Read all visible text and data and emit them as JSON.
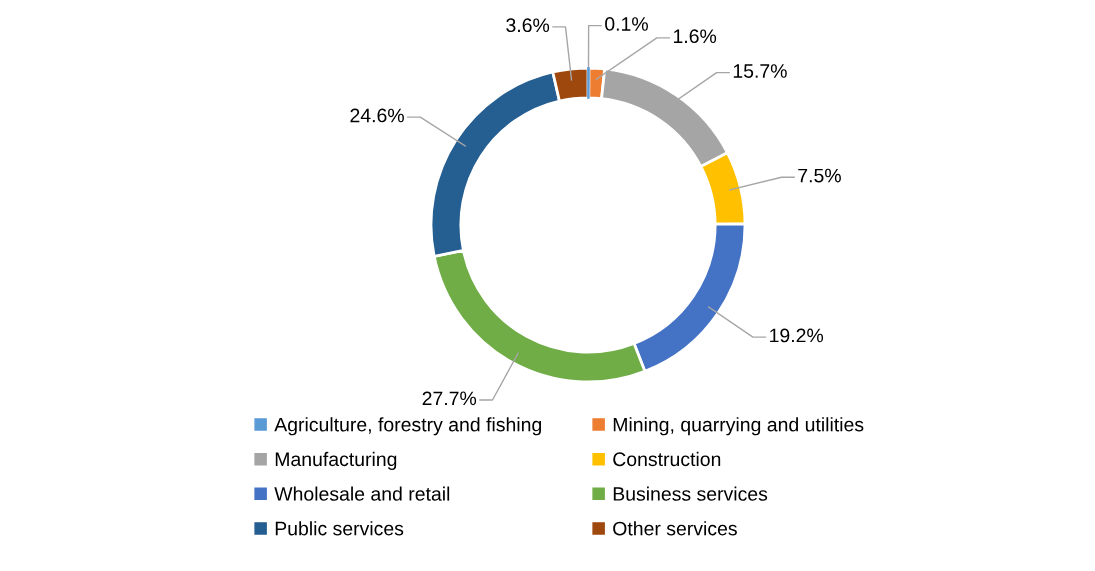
{
  "chart_data": {
    "type": "donut",
    "categories": [
      "Agriculture, forestry and fishing",
      "Mining, quarrying and utilities",
      "Manufacturing",
      "Construction",
      "Wholesale and retail",
      "Business services",
      "Public services",
      "Other services"
    ],
    "values": [
      0.1,
      1.6,
      15.7,
      7.5,
      19.2,
      27.7,
      24.6,
      3.6
    ],
    "colors": [
      "#5b9bd5",
      "#ed7d31",
      "#a5a5a5",
      "#ffc000",
      "#4472c4",
      "#70ad47",
      "#255e91",
      "#9e480e"
    ],
    "value_labels": [
      "0.1%",
      "1.6%",
      "15.7%",
      "7.5%",
      "19.2%",
      "27.7%",
      "24.6%",
      "3.6%"
    ],
    "legend": "bottom"
  }
}
